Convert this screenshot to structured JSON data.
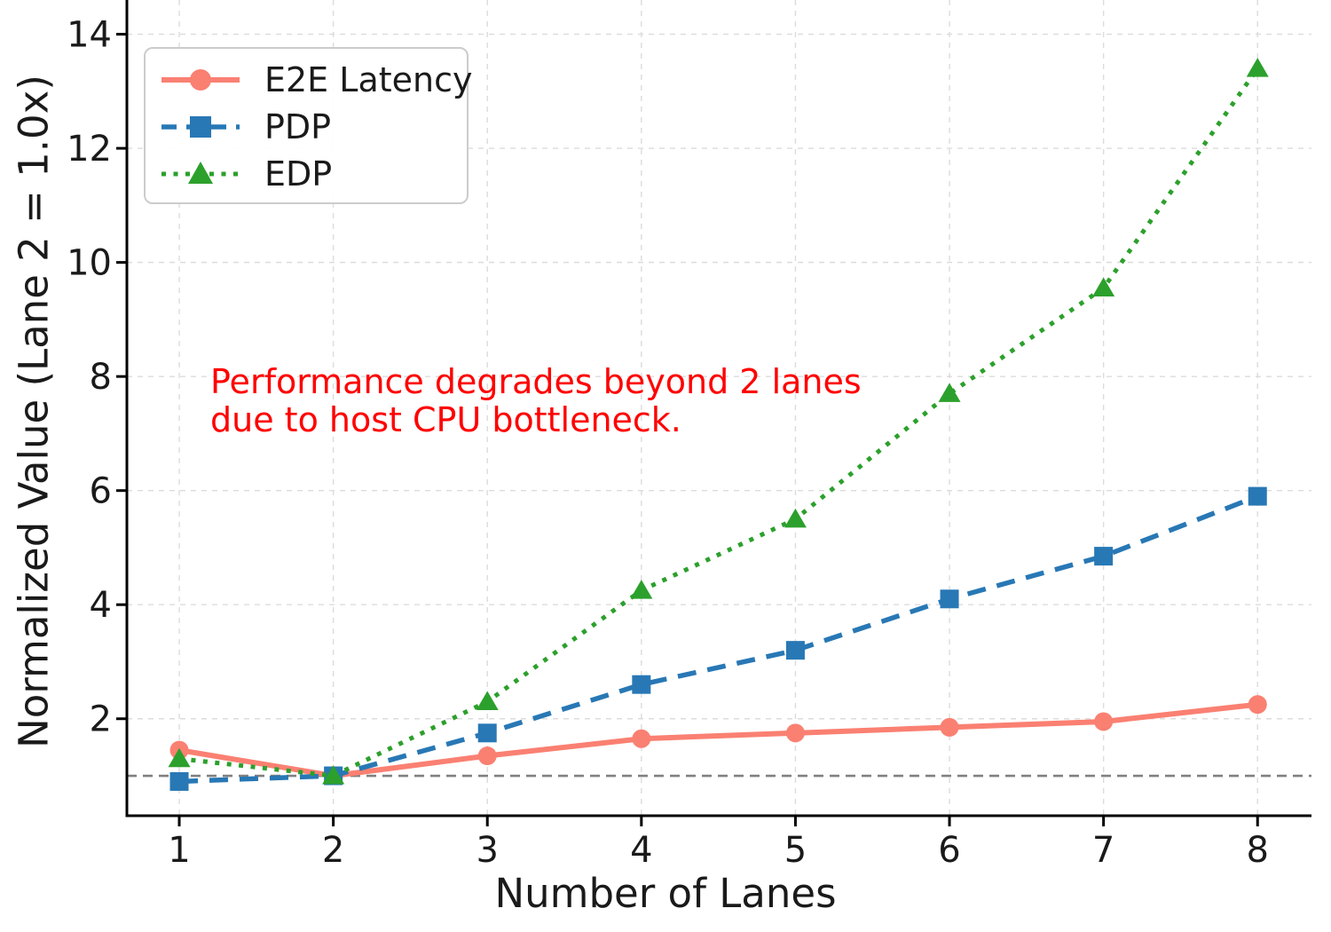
{
  "chart_data": {
    "type": "line",
    "title": "",
    "xlabel": "Number of Lanes",
    "ylabel": "Normalized Value (Lane 2 = 1.0x)",
    "x": [
      1,
      2,
      3,
      4,
      5,
      6,
      7,
      8
    ],
    "series": [
      {
        "name": "E2E Latency",
        "color": "#fa8072",
        "line_style": "solid",
        "line_width": 6,
        "marker": "circle",
        "values": [
          1.45,
          1.0,
          1.35,
          1.65,
          1.75,
          1.85,
          1.95,
          2.25
        ]
      },
      {
        "name": "PDP",
        "color": "#2878b5",
        "line_style": "dashed",
        "line_width": 5.5,
        "marker": "square",
        "values": [
          0.9,
          1.0,
          1.75,
          2.6,
          3.2,
          4.1,
          4.85,
          5.9
        ]
      },
      {
        "name": "EDP",
        "color": "#2ca02c",
        "line_style": "dotted",
        "line_width": 5,
        "marker": "triangle",
        "values": [
          1.3,
          1.0,
          2.3,
          4.25,
          5.5,
          7.7,
          9.55,
          13.4
        ]
      }
    ],
    "x_ticks": [
      "1",
      "2",
      "3",
      "4",
      "5",
      "6",
      "7",
      "8"
    ],
    "y_ticks": [
      "2",
      "4",
      "6",
      "8",
      "10",
      "12",
      "14"
    ],
    "x_tick_values": [
      1,
      2,
      3,
      4,
      5,
      6,
      7,
      8
    ],
    "y_tick_values": [
      2,
      4,
      6,
      8,
      10,
      12,
      14
    ],
    "xlim": [
      0.66,
      8.35
    ],
    "ylim": [
      0.3,
      14.6
    ],
    "grid": true,
    "legend_position": "upper left",
    "reference_line": {
      "y": 1.0,
      "color": "#808080",
      "style": "dashed"
    }
  },
  "axes": {
    "x_label": "Number of Lanes",
    "y_label": "Normalized Value (Lane 2 = 1.0x)"
  },
  "legend": {
    "items": [
      {
        "label": "E2E Latency"
      },
      {
        "label": "PDP"
      },
      {
        "label": "EDP"
      }
    ]
  },
  "annotation": {
    "line1": "Performance degrades beyond 2 lanes",
    "line2": "due to host CPU bottleneck.",
    "color": "#ff0000"
  },
  "colors": {
    "grid": "#dcdcdc",
    "spine": "#000000",
    "tick_label": "#1a1a1a",
    "background": "#ffffff"
  }
}
